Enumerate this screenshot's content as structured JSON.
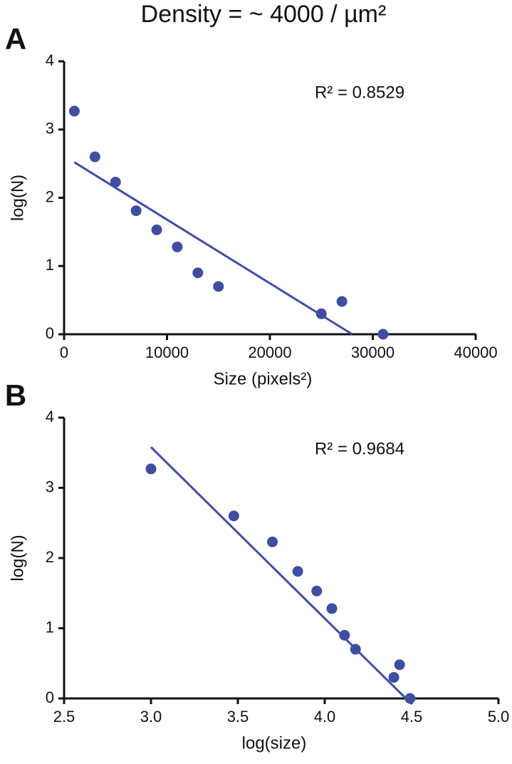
{
  "title": "Density = ~ 4000 / µm²",
  "chart_data": [
    {
      "type": "scatter",
      "panel_label": "A",
      "annotation": "R² = 0.8529",
      "x_label": "Size (pixels²)",
      "y_label": "log(N)",
      "xlim": [
        0,
        40000
      ],
      "xticks": [
        0,
        10000,
        20000,
        30000,
        40000
      ],
      "ylim": [
        0,
        4
      ],
      "yticks": [
        0,
        1,
        2,
        3,
        4
      ],
      "series": [
        {
          "type": "scatter",
          "color": "#3f4ea0",
          "x": [
            1000,
            3000,
            5000,
            7000,
            9000,
            11000,
            13000,
            15000,
            25000,
            27000,
            31000
          ],
          "values": [
            3.27,
            2.6,
            2.23,
            1.81,
            1.53,
            1.28,
            0.9,
            0.7,
            0.3,
            0.48,
            0
          ]
        },
        {
          "type": "line",
          "color": "#3f4ea0",
          "x": [
            1000,
            28000
          ],
          "values": [
            2.52,
            0
          ]
        }
      ]
    },
    {
      "type": "scatter",
      "panel_label": "B",
      "annotation": "R² = 0.9684",
      "x_label": "log(size)",
      "y_label": "log(N)",
      "xlim": [
        2.5,
        5
      ],
      "xticks": [
        2.5,
        {
          "value": 3,
          "label": "3.0"
        },
        3.5,
        {
          "value": 4,
          "label": "4.0"
        },
        4.5,
        {
          "value": 5,
          "label": "5.0"
        }
      ],
      "ylim": [
        0,
        4
      ],
      "yticks": [
        0,
        1,
        2,
        3,
        4
      ],
      "series": [
        {
          "type": "scatter",
          "color": "#3f4ea0",
          "x": [
            3.0,
            3.477,
            3.699,
            3.845,
            3.954,
            4.041,
            4.114,
            4.177,
            4.398,
            4.431,
            4.491
          ],
          "values": [
            3.27,
            2.6,
            2.23,
            1.81,
            1.53,
            1.28,
            0.9,
            0.7,
            0.3,
            0.48,
            0
          ]
        },
        {
          "type": "line",
          "color": "#3f4ea0",
          "x": [
            3.0,
            4.5
          ],
          "values": [
            3.58,
            -0.08
          ]
        }
      ]
    }
  ]
}
